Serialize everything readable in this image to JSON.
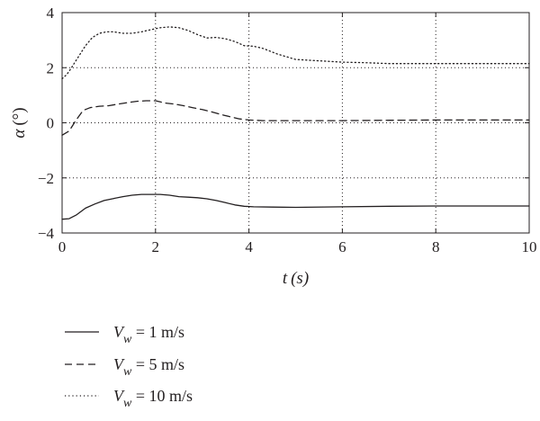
{
  "chart_data": {
    "type": "line",
    "xlabel": {
      "var": "t",
      "unit": "(s)"
    },
    "ylabel": {
      "var": "α",
      "unit": "(°)"
    },
    "xlim": [
      0,
      10
    ],
    "ylim": [
      -4,
      4
    ],
    "xticks": [
      0,
      2,
      4,
      6,
      8,
      10
    ],
    "yticks": [
      -4,
      -2,
      0,
      2,
      4
    ],
    "xtick_labels": [
      "0",
      "2",
      "4",
      "6",
      "8",
      "10"
    ],
    "ytick_labels": [
      "−4",
      "−2",
      "0",
      "2",
      "4"
    ],
    "grid": "dotted",
    "legend_position": "bottom-left, below plot",
    "series": [
      {
        "name": "Vw = 1 m/s",
        "legend": {
          "var": "V",
          "sub": "w",
          "rest": " = 1 m/s"
        },
        "style": "solid",
        "x": [
          0,
          0.15,
          0.3,
          0.5,
          0.7,
          0.9,
          1.1,
          1.3,
          1.5,
          1.7,
          1.9,
          2.1,
          2.3,
          2.5,
          2.7,
          2.9,
          3.1,
          3.3,
          3.5,
          3.7,
          3.9,
          4.1,
          4.5,
          5.0,
          6.0,
          7.0,
          8.0,
          9.0,
          10.0
        ],
        "y": [
          -3.5,
          -3.48,
          -3.35,
          -3.1,
          -2.95,
          -2.82,
          -2.75,
          -2.68,
          -2.63,
          -2.6,
          -2.6,
          -2.6,
          -2.63,
          -2.68,
          -2.7,
          -2.72,
          -2.76,
          -2.82,
          -2.9,
          -2.98,
          -3.03,
          -3.05,
          -3.06,
          -3.07,
          -3.05,
          -3.03,
          -3.02,
          -3.02,
          -3.02
        ]
      },
      {
        "name": "Vw = 5 m/s",
        "legend": {
          "var": "V",
          "sub": "w",
          "rest": " = 5 m/s"
        },
        "style": "dashed",
        "x": [
          0,
          0.15,
          0.3,
          0.45,
          0.6,
          0.8,
          1.0,
          1.2,
          1.4,
          1.6,
          1.8,
          2.0,
          2.2,
          2.4,
          2.6,
          2.8,
          3.0,
          3.2,
          3.4,
          3.6,
          3.8,
          4.0,
          4.3,
          4.6,
          5.0,
          6.0,
          7.0,
          8.0,
          9.0,
          10.0
        ],
        "y": [
          -0.45,
          -0.3,
          0.1,
          0.45,
          0.55,
          0.6,
          0.62,
          0.68,
          0.73,
          0.78,
          0.8,
          0.8,
          0.72,
          0.68,
          0.62,
          0.55,
          0.48,
          0.4,
          0.3,
          0.22,
          0.14,
          0.1,
          0.08,
          0.08,
          0.08,
          0.08,
          0.09,
          0.1,
          0.1,
          0.1
        ]
      },
      {
        "name": "Vw = 10 m/s",
        "legend": {
          "var": "V",
          "sub": "w",
          "rest": " = 10 m/s"
        },
        "style": "dotted",
        "x": [
          0,
          0.1,
          0.2,
          0.35,
          0.5,
          0.65,
          0.8,
          0.95,
          1.1,
          1.3,
          1.5,
          1.7,
          1.9,
          2.1,
          2.3,
          2.5,
          2.7,
          2.9,
          3.1,
          3.3,
          3.5,
          3.7,
          3.9,
          4.1,
          4.3,
          4.6,
          5.0,
          5.5,
          6.0,
          6.5,
          7.0,
          8.0,
          9.0,
          10.0
        ],
        "y": [
          1.6,
          1.75,
          2.0,
          2.4,
          2.8,
          3.1,
          3.25,
          3.3,
          3.3,
          3.25,
          3.25,
          3.3,
          3.38,
          3.45,
          3.48,
          3.45,
          3.35,
          3.2,
          3.08,
          3.1,
          3.05,
          2.95,
          2.8,
          2.78,
          2.7,
          2.5,
          2.3,
          2.25,
          2.2,
          2.18,
          2.15,
          2.15,
          2.15,
          2.15
        ]
      }
    ]
  }
}
